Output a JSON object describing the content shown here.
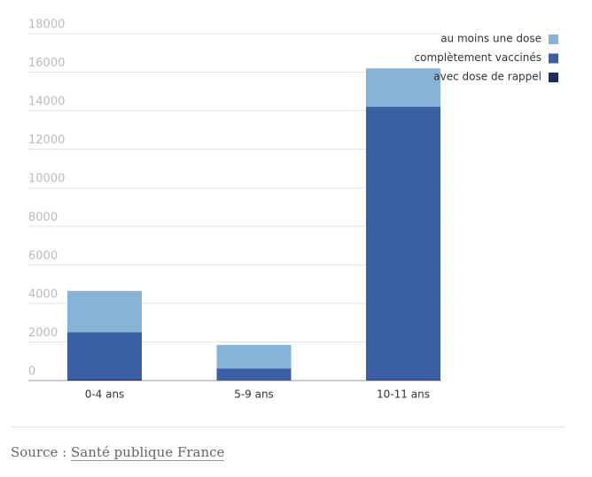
{
  "chart_data": {
    "type": "bar",
    "categories": [
      "0-4 ans",
      "5-9 ans",
      "10-11 ans"
    ],
    "series": [
      {
        "name": "au moins une dose",
        "color": "#86b3d8",
        "values": [
          4650,
          1850,
          16200
        ]
      },
      {
        "name": "complètement vaccinés",
        "color": "#3a5fa5",
        "values": [
          2500,
          620,
          14200
        ]
      },
      {
        "name": "avec dose de rappel",
        "color": "#1a2f5c",
        "values": [
          40,
          10,
          20
        ]
      }
    ],
    "ylim": [
      0,
      18000
    ],
    "yticks": [
      0,
      2000,
      4000,
      6000,
      8000,
      10000,
      12000,
      14000,
      16000,
      18000
    ],
    "grid": true,
    "legend": "top-right"
  },
  "source": {
    "label": "Source :",
    "link": "Santé publique France"
  }
}
